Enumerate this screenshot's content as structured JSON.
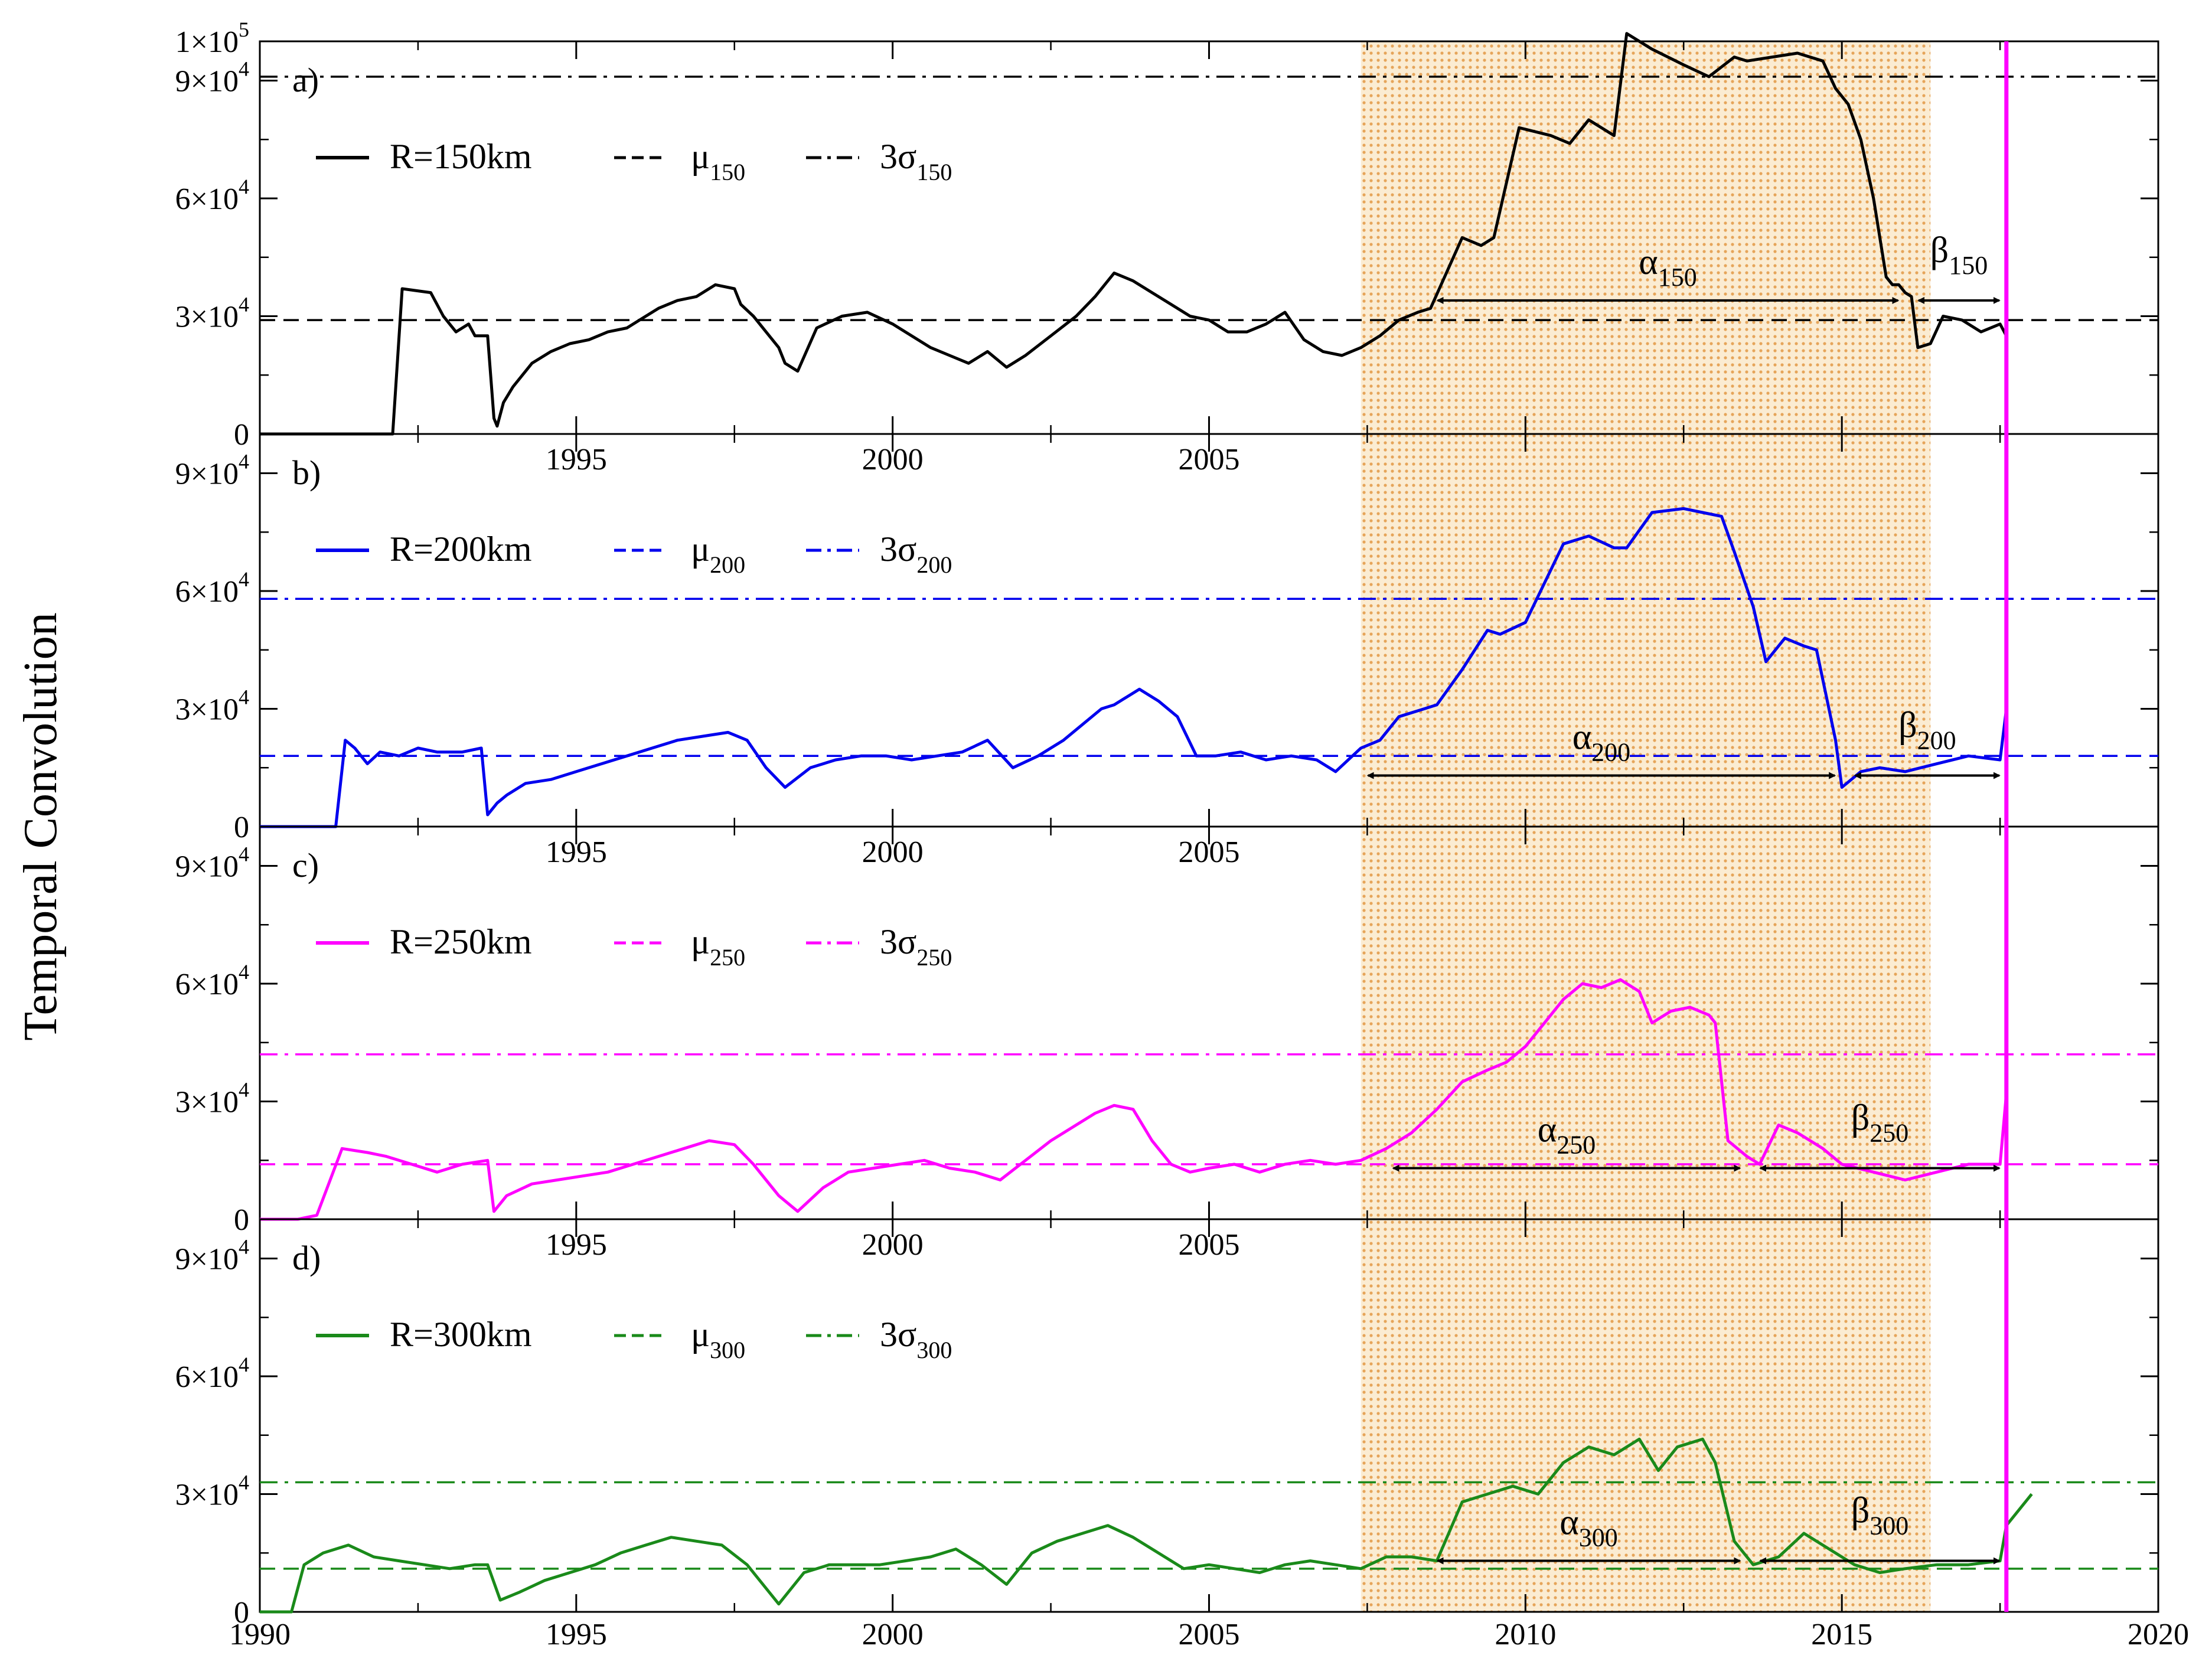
{
  "chart_data": {
    "type": "line",
    "ylabel": "Temporal Convolution",
    "xlim": [
      1990,
      2020
    ],
    "ylim": [
      0,
      100000
    ],
    "x_ticks": [
      1990,
      1995,
      2000,
      2005,
      2010,
      2015,
      2020
    ],
    "shaded_interval": [
      2007.4,
      2016.4
    ],
    "event_line_x": 2017.6,
    "event_line_color": "#ff00ff",
    "shade_color": "#f5d9a8",
    "shade_dot_color": "#e8a050",
    "panels": [
      {
        "tag": "a)",
        "radius_label": "R=150km",
        "mu_label": "μ",
        "sigma_label": "3σ",
        "suffix": "150",
        "color": "#000000",
        "mu": 29000,
        "three_sigma": 91000,
        "y_tick_values": [
          0,
          30000,
          60000,
          90000,
          100000
        ],
        "y_tick_labels": [
          {
            "mant": "0",
            "exp": ""
          },
          {
            "mant": "3×10",
            "exp": "4"
          },
          {
            "mant": "6×10",
            "exp": "4"
          },
          {
            "mant": "9×10",
            "exp": "4"
          },
          {
            "mant": "1×10",
            "exp": "5"
          }
        ],
        "x_tick_labels_shown": [
          "1995",
          "2000",
          "2005"
        ],
        "alpha_label": "α",
        "alpha_interval": [
          2008.5,
          2016.0
        ],
        "beta_label": "β",
        "beta_interval": [
          2016.1,
          2017.6
        ],
        "arrow_y": 34000,
        "series_x": [
          1990,
          1992.1,
          1992.25,
          1992.7,
          1992.9,
          1993.0,
          1993.1,
          1993.3,
          1993.4,
          1993.6,
          1993.7,
          1993.75,
          1993.85,
          1994.0,
          1994.3,
          1994.6,
          1994.9,
          1995.2,
          1995.5,
          1995.8,
          1996.0,
          1996.3,
          1996.6,
          1996.9,
          1997.2,
          1997.5,
          1997.6,
          1997.8,
          1998.0,
          1998.2,
          1998.3,
          1998.5,
          1998.8,
          1999.2,
          1999.6,
          2000.0,
          2000.3,
          2000.6,
          2000.9,
          2001.2,
          2001.5,
          2001.8,
          2002.1,
          2002.5,
          2002.9,
          2003.2,
          2003.5,
          2003.8,
          2004.1,
          2004.4,
          2004.7,
          2005.0,
          2005.3,
          2005.6,
          2005.9,
          2006.2,
          2006.5,
          2006.8,
          2007.1,
          2007.4,
          2007.7,
          2008.0,
          2008.3,
          2008.5,
          2009.0,
          2009.3,
          2009.5,
          2009.9,
          2010.4,
          2010.7,
          2011.0,
          2011.4,
          2011.6,
          2012.0,
          2012.5,
          2012.9,
          2013.3,
          2013.5,
          2013.9,
          2014.3,
          2014.7,
          2014.9,
          2015.1,
          2015.3,
          2015.5,
          2015.7,
          2015.8,
          2015.9,
          2016.0,
          2016.1,
          2016.2,
          2016.4,
          2016.6,
          2016.9,
          2017.2,
          2017.5,
          2017.6
        ],
        "series_y": [
          0,
          0,
          37000,
          36000,
          30000,
          28000,
          26000,
          28000,
          25000,
          25000,
          4000,
          2000,
          8000,
          12000,
          18000,
          21000,
          23000,
          24000,
          26000,
          27000,
          29000,
          32000,
          34000,
          35000,
          38000,
          37000,
          33000,
          30000,
          26000,
          22000,
          18000,
          16000,
          27000,
          30000,
          31000,
          28000,
          25000,
          22000,
          20000,
          18000,
          21000,
          17000,
          20000,
          25000,
          30000,
          35000,
          41000,
          39000,
          36000,
          33000,
          30000,
          29000,
          26000,
          26000,
          28000,
          31000,
          24000,
          21000,
          20000,
          22000,
          25000,
          29000,
          31000,
          32000,
          50000,
          48000,
          50000,
          78000,
          76000,
          74000,
          80000,
          76000,
          102000,
          98000,
          94000,
          91000,
          96000,
          95000,
          96000,
          97000,
          95000,
          88000,
          84000,
          75000,
          60000,
          40000,
          38000,
          38000,
          36000,
          35000,
          22000,
          23000,
          30000,
          29000,
          26000,
          28000,
          25000
        ]
      },
      {
        "tag": "b)",
        "radius_label": "R=200km",
        "mu_label": "μ",
        "sigma_label": "3σ",
        "suffix": "200",
        "color": "#0000ee",
        "mu": 18000,
        "three_sigma": 58000,
        "y_tick_values": [
          0,
          30000,
          60000,
          90000
        ],
        "y_tick_labels": [
          {
            "mant": "0",
            "exp": ""
          },
          {
            "mant": "3×10",
            "exp": "4"
          },
          {
            "mant": "6×10",
            "exp": "4"
          },
          {
            "mant": "9×10",
            "exp": "4"
          }
        ],
        "x_tick_labels_shown": [
          "1995",
          "2000",
          "2005"
        ],
        "alpha_label": "α",
        "alpha_interval": [
          2007.4,
          2015.0
        ],
        "beta_label": "β",
        "beta_interval": [
          2015.1,
          2017.6
        ],
        "arrow_y": 13000,
        "series_x": [
          1990,
          1991.2,
          1991.35,
          1991.5,
          1991.7,
          1991.9,
          1992.2,
          1992.5,
          1992.8,
          1993.2,
          1993.5,
          1993.6,
          1993.75,
          1993.9,
          1994.2,
          1994.6,
          1995.0,
          1995.4,
          1995.8,
          1996.2,
          1996.6,
          1997.0,
          1997.4,
          1997.7,
          1998.0,
          1998.3,
          1998.7,
          1999.1,
          1999.5,
          1999.9,
          2000.3,
          2000.7,
          2001.1,
          2001.5,
          2001.9,
          2002.3,
          2002.7,
          2003.0,
          2003.3,
          2003.5,
          2003.7,
          2003.9,
          2004.2,
          2004.5,
          2004.8,
          2005.1,
          2005.5,
          2005.9,
          2006.3,
          2006.7,
          2007.0,
          2007.4,
          2007.7,
          2008.0,
          2008.4,
          2008.6,
          2009.0,
          2009.4,
          2009.6,
          2010.0,
          2010.6,
          2011.0,
          2011.4,
          2011.6,
          2012.0,
          2012.5,
          2012.8,
          2013.1,
          2013.3,
          2013.6,
          2013.8,
          2014.1,
          2014.4,
          2014.6,
          2014.9,
          2015.0,
          2015.3,
          2015.6,
          2016.0,
          2016.5,
          2017.0,
          2017.5,
          2017.6
        ],
        "series_y": [
          0,
          0,
          22000,
          20000,
          16000,
          19000,
          18000,
          20000,
          19000,
          19000,
          20000,
          3000,
          6000,
          8000,
          11000,
          12000,
          14000,
          16000,
          18000,
          20000,
          22000,
          23000,
          24000,
          22000,
          15000,
          10000,
          15000,
          17000,
          18000,
          18000,
          17000,
          18000,
          19000,
          22000,
          15000,
          18000,
          22000,
          26000,
          30000,
          31000,
          33000,
          35000,
          32000,
          28000,
          18000,
          18000,
          19000,
          17000,
          18000,
          17000,
          14000,
          20000,
          22000,
          28000,
          30000,
          31000,
          40000,
          50000,
          49000,
          52000,
          72000,
          74000,
          71000,
          71000,
          80000,
          81000,
          80000,
          79000,
          70000,
          56000,
          42000,
          48000,
          46000,
          45000,
          22000,
          10000,
          14000,
          15000,
          14000,
          16000,
          18000,
          17000,
          30000
        ]
      },
      {
        "tag": "c)",
        "radius_label": "R=250km",
        "mu_label": "μ",
        "sigma_label": "3σ",
        "suffix": "250",
        "color": "#ff00ff",
        "mu": 14000,
        "three_sigma": 42000,
        "y_tick_values": [
          0,
          30000,
          60000,
          90000
        ],
        "y_tick_labels": [
          {
            "mant": "0",
            "exp": ""
          },
          {
            "mant": "3×10",
            "exp": "4"
          },
          {
            "mant": "6×10",
            "exp": "4"
          },
          {
            "mant": "9×10",
            "exp": "4"
          }
        ],
        "x_tick_labels_shown": [
          "1995",
          "2000",
          "2005"
        ],
        "alpha_label": "α",
        "alpha_interval": [
          2007.8,
          2013.5
        ],
        "beta_label": "β",
        "beta_interval": [
          2013.6,
          2017.6
        ],
        "arrow_y": 13000,
        "series_x": [
          1990,
          1990.6,
          1990.9,
          1991.3,
          1991.7,
          1992.0,
          1992.4,
          1992.8,
          1993.2,
          1993.6,
          1993.7,
          1993.9,
          1994.3,
          1994.7,
          1995.1,
          1995.5,
          1995.9,
          1996.3,
          1996.7,
          1997.1,
          1997.5,
          1997.8,
          1998.0,
          1998.2,
          1998.5,
          1998.9,
          1999.3,
          1999.7,
          2000.1,
          2000.5,
          2000.9,
          2001.3,
          2001.7,
          2002.1,
          2002.5,
          2002.9,
          2003.2,
          2003.5,
          2003.8,
          2004.1,
          2004.4,
          2004.7,
          2005.0,
          2005.4,
          2005.8,
          2006.2,
          2006.6,
          2007.0,
          2007.4,
          2007.8,
          2008.2,
          2008.6,
          2009.0,
          2009.4,
          2009.7,
          2010.0,
          2010.3,
          2010.6,
          2010.9,
          2011.2,
          2011.5,
          2011.8,
          2012.0,
          2012.3,
          2012.6,
          2012.9,
          2013.0,
          2013.2,
          2013.5,
          2013.7,
          2014.0,
          2014.3,
          2014.7,
          2015.0,
          2015.5,
          2016.0,
          2016.5,
          2017.0,
          2017.5,
          2017.6
        ],
        "series_y": [
          0,
          0,
          1000,
          18000,
          17000,
          16000,
          14000,
          12000,
          14000,
          15000,
          2000,
          6000,
          9000,
          10000,
          11000,
          12000,
          14000,
          16000,
          18000,
          20000,
          19000,
          14000,
          10000,
          6000,
          2000,
          8000,
          12000,
          13000,
          14000,
          15000,
          13000,
          12000,
          10000,
          15000,
          20000,
          24000,
          27000,
          29000,
          28000,
          20000,
          14000,
          12000,
          13000,
          14000,
          12000,
          14000,
          15000,
          14000,
          15000,
          18000,
          22000,
          28000,
          35000,
          38000,
          40000,
          44000,
          50000,
          56000,
          60000,
          59000,
          61000,
          58000,
          50000,
          53000,
          54000,
          52000,
          50000,
          20000,
          16000,
          14000,
          24000,
          22000,
          18000,
          14000,
          12000,
          10000,
          12000,
          14000,
          14000,
          32000
        ]
      },
      {
        "tag": "d)",
        "radius_label": "R=300km",
        "mu_label": "μ",
        "sigma_label": "3σ",
        "suffix": "300",
        "color": "#1a8a1a",
        "mu": 11000,
        "three_sigma": 33000,
        "y_tick_values": [
          0,
          30000,
          60000,
          90000
        ],
        "y_tick_labels": [
          {
            "mant": "0",
            "exp": ""
          },
          {
            "mant": "3×10",
            "exp": "4"
          },
          {
            "mant": "6×10",
            "exp": "4"
          },
          {
            "mant": "9×10",
            "exp": "4"
          }
        ],
        "x_tick_labels_shown": [
          "1990",
          "1995",
          "2000",
          "2005",
          "2010",
          "2015",
          "2020"
        ],
        "alpha_label": "α",
        "alpha_interval": [
          2008.5,
          2013.5
        ],
        "beta_label": "β",
        "beta_interval": [
          2013.6,
          2017.6
        ],
        "arrow_y": 13000,
        "series_x": [
          1990,
          1990.5,
          1990.7,
          1991.0,
          1991.4,
          1991.8,
          1992.2,
          1992.6,
          1993.0,
          1993.4,
          1993.6,
          1993.8,
          1994.1,
          1994.5,
          1994.9,
          1995.3,
          1995.7,
          1996.1,
          1996.5,
          1996.9,
          1997.3,
          1997.7,
          1998.0,
          1998.2,
          1998.6,
          1999.0,
          1999.4,
          1999.8,
          2000.2,
          2000.6,
          2001.0,
          2001.4,
          2001.8,
          2002.2,
          2002.6,
          2003.0,
          2003.4,
          2003.8,
          2004.2,
          2004.6,
          2005.0,
          2005.4,
          2005.8,
          2006.2,
          2006.6,
          2007.0,
          2007.4,
          2007.8,
          2008.2,
          2008.6,
          2009.0,
          2009.4,
          2009.8,
          2010.2,
          2010.6,
          2011.0,
          2011.4,
          2011.8,
          2012.1,
          2012.4,
          2012.8,
          2013.0,
          2013.3,
          2013.6,
          2014.0,
          2014.4,
          2014.8,
          2015.2,
          2015.6,
          2016.0,
          2016.5,
          2017.0,
          2017.5,
          2017.6,
          2018.0
        ],
        "series_y": [
          0,
          0,
          12000,
          15000,
          17000,
          14000,
          13000,
          12000,
          11000,
          12000,
          12000,
          3000,
          5000,
          8000,
          10000,
          12000,
          15000,
          17000,
          19000,
          18000,
          17000,
          12000,
          6000,
          2000,
          10000,
          12000,
          12000,
          12000,
          13000,
          14000,
          16000,
          12000,
          7000,
          15000,
          18000,
          20000,
          22000,
          19000,
          15000,
          11000,
          12000,
          11000,
          10000,
          12000,
          13000,
          12000,
          11000,
          14000,
          14000,
          13000,
          28000,
          30000,
          32000,
          30000,
          38000,
          42000,
          40000,
          44000,
          36000,
          42000,
          44000,
          38000,
          18000,
          12000,
          14000,
          20000,
          16000,
          12000,
          10000,
          11000,
          12000,
          12000,
          13000,
          22000,
          30000
        ]
      }
    ]
  }
}
